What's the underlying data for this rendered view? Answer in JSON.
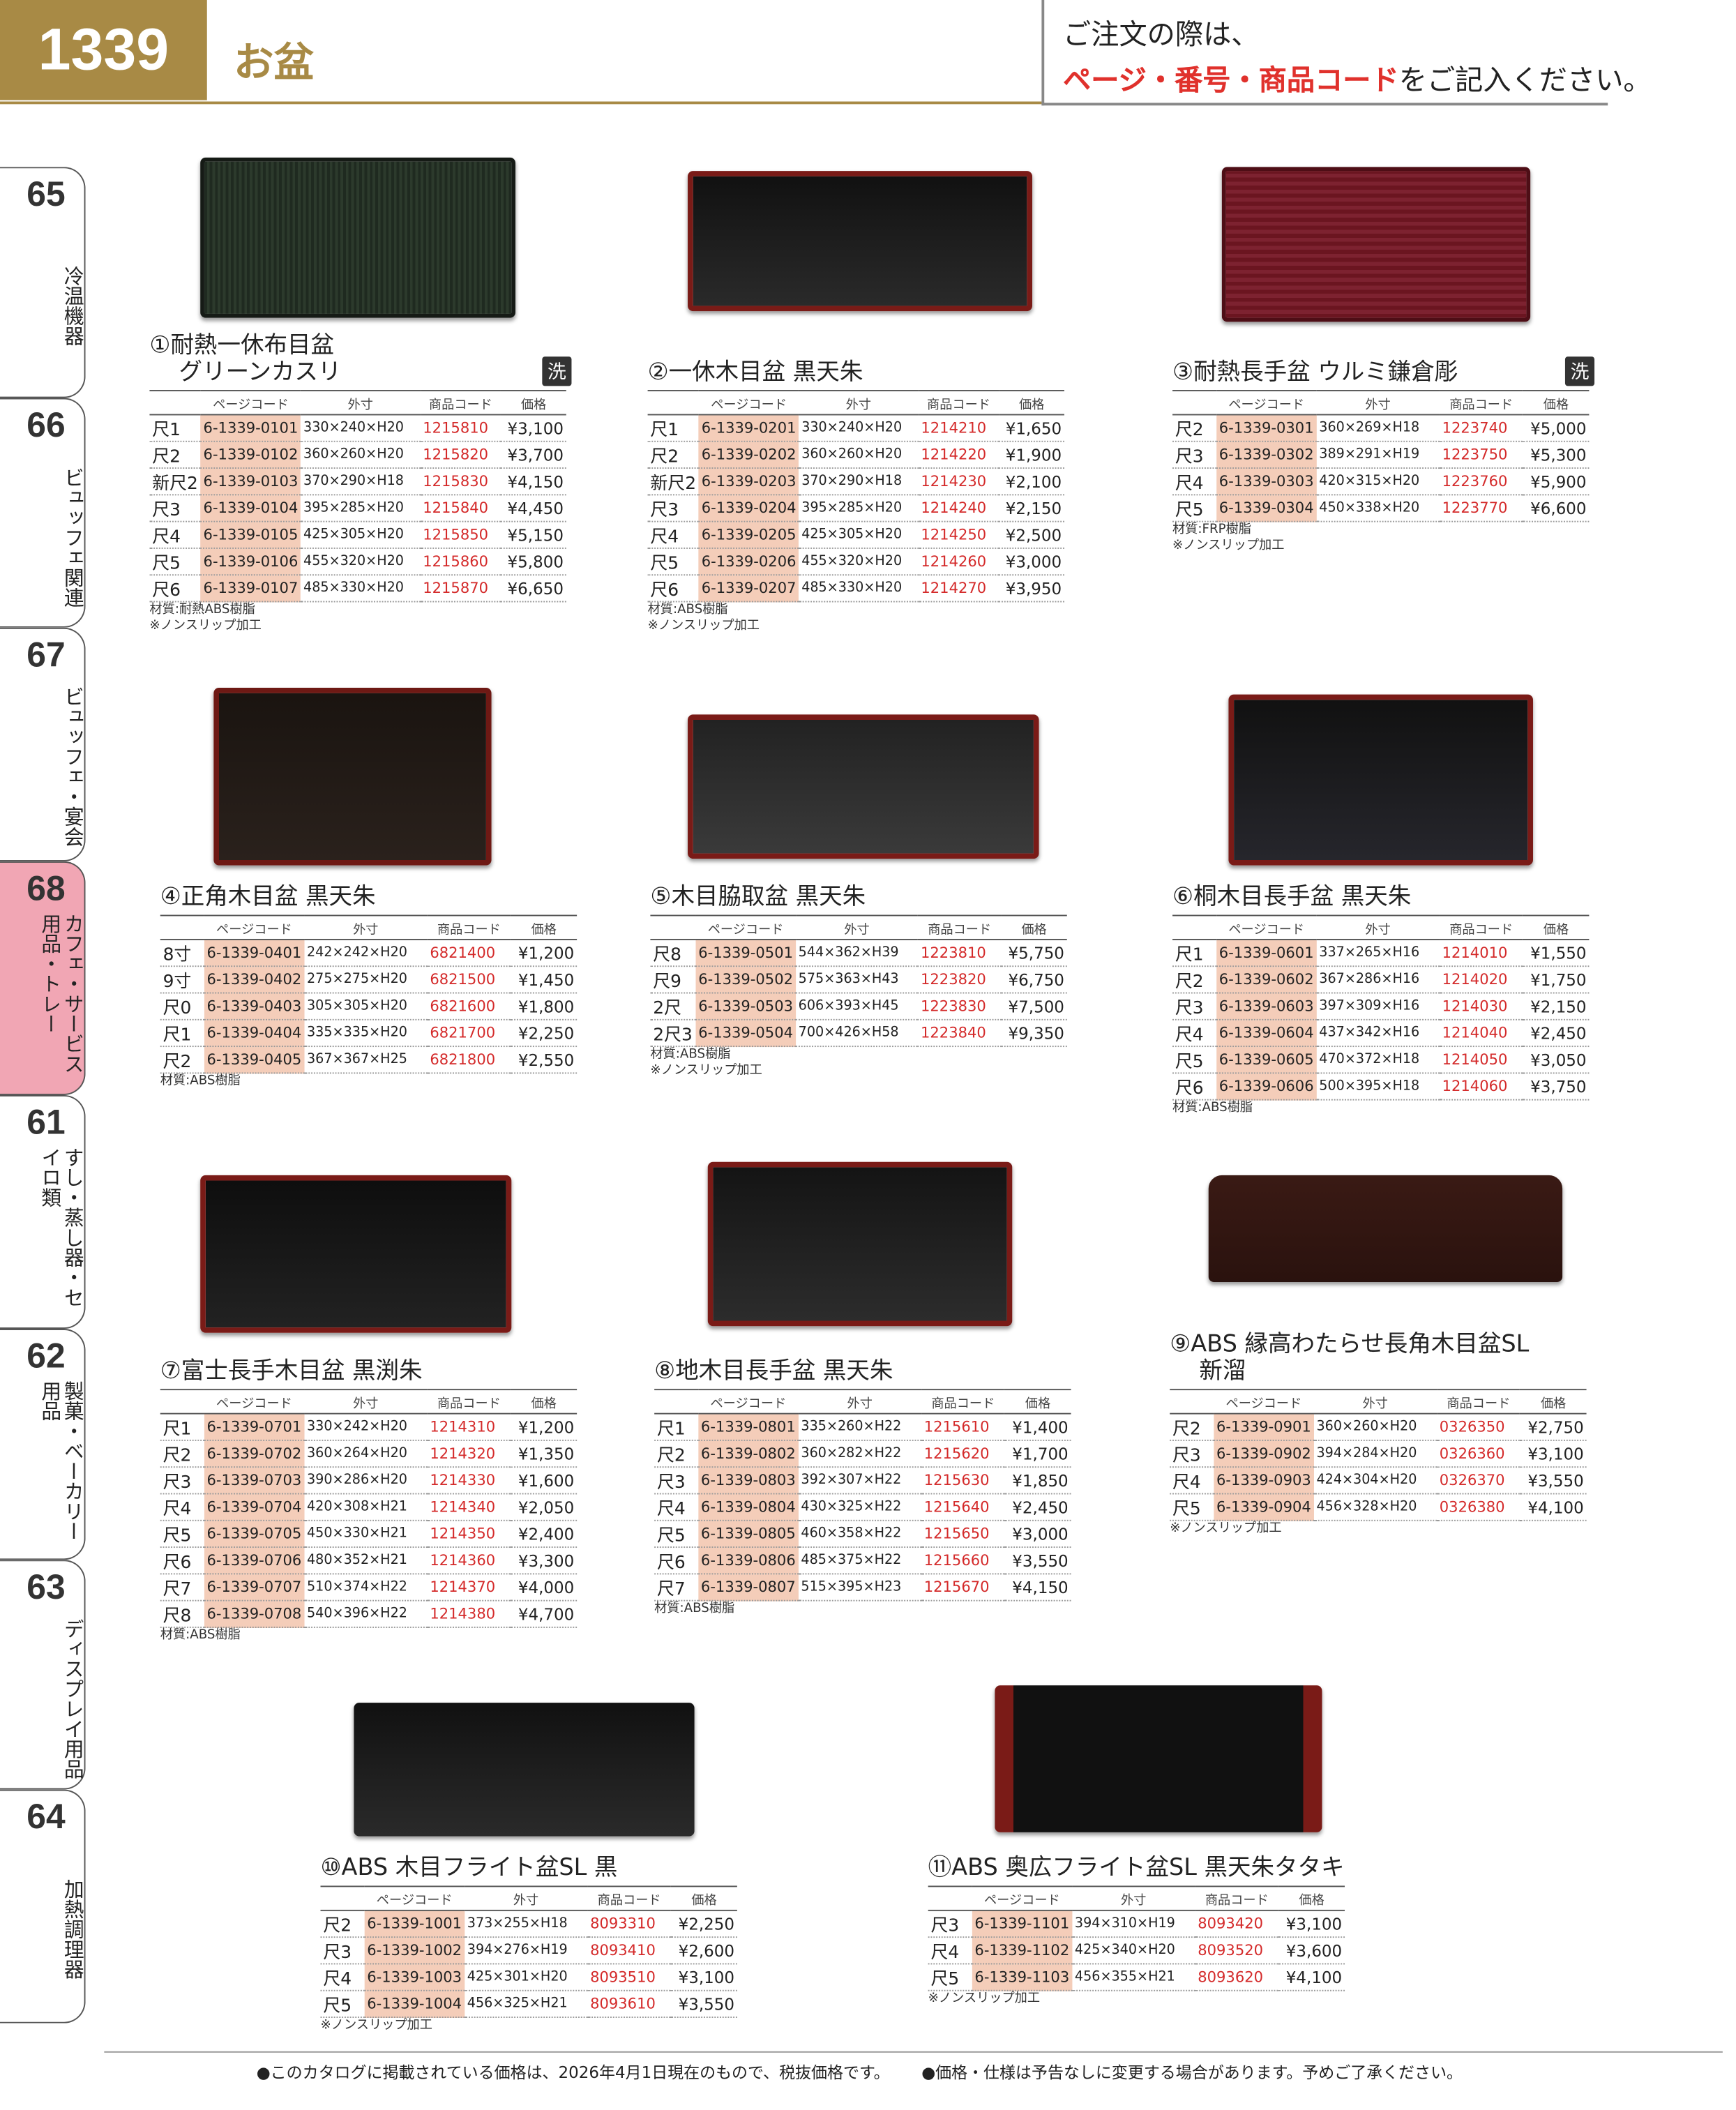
{
  "header": {
    "page": "1339",
    "title": "お盆",
    "notice_line1": "ご注文の際は、",
    "notice_highlight": "ページ・番号・商品コード",
    "notice_rest": "をご記入ください。"
  },
  "side_tabs": [
    {
      "number": "65",
      "label": "冷温機器"
    },
    {
      "number": "66",
      "label": "ビュッフェ関連"
    },
    {
      "number": "67",
      "label": "ビュッフェ・宴会"
    },
    {
      "number": "68",
      "label": "カフェ・サービス用品・トレー"
    },
    {
      "number": "61",
      "label": "すし・蒸し器・セイロ類"
    },
    {
      "number": "62",
      "label": "製菓・ベーカリー用品"
    },
    {
      "number": "63",
      "label": "ディスプレイ用品"
    },
    {
      "number": "64",
      "label": "加熱調理器"
    }
  ],
  "table_header": [
    "ページコード",
    "外寸",
    "商品コード",
    "価格"
  ],
  "products": [
    {
      "title": "①耐熱一休布目盆",
      "subtitle": "グリーンカスリ",
      "badge": "洗",
      "rows": [
        [
          "尺1",
          "6-1339-0101",
          "330×240×H20",
          "1215810",
          "¥3,100"
        ],
        [
          "尺2",
          "6-1339-0102",
          "360×260×H20",
          "1215820",
          "¥3,700"
        ],
        [
          "新尺2",
          "6-1339-0103",
          "370×290×H18",
          "1215830",
          "¥4,150"
        ],
        [
          "尺3",
          "6-1339-0104",
          "395×285×H20",
          "1215840",
          "¥4,450"
        ],
        [
          "尺4",
          "6-1339-0105",
          "425×305×H20",
          "1215850",
          "¥5,150"
        ],
        [
          "尺5",
          "6-1339-0106",
          "455×320×H20",
          "1215860",
          "¥5,800"
        ],
        [
          "尺6",
          "6-1339-0107",
          "485×330×H20",
          "1215870",
          "¥6,650"
        ]
      ],
      "notes": [
        "材質:耐熱ABS樹脂",
        "※ノンスリップ加工"
      ]
    },
    {
      "title": "②一休木目盆 黒天朱",
      "rows": [
        [
          "尺1",
          "6-1339-0201",
          "330×240×H20",
          "1214210",
          "¥1,650"
        ],
        [
          "尺2",
          "6-1339-0202",
          "360×260×H20",
          "1214220",
          "¥1,900"
        ],
        [
          "新尺2",
          "6-1339-0203",
          "370×290×H18",
          "1214230",
          "¥2,100"
        ],
        [
          "尺3",
          "6-1339-0204",
          "395×285×H20",
          "1214240",
          "¥2,150"
        ],
        [
          "尺4",
          "6-1339-0205",
          "425×305×H20",
          "1214250",
          "¥2,500"
        ],
        [
          "尺5",
          "6-1339-0206",
          "455×320×H20",
          "1214260",
          "¥3,000"
        ],
        [
          "尺6",
          "6-1339-0207",
          "485×330×H20",
          "1214270",
          "¥3,950"
        ]
      ],
      "notes": [
        "材質:ABS樹脂",
        "※ノンスリップ加工"
      ]
    },
    {
      "title": "③耐熱長手盆 ウルミ鎌倉彫",
      "badge": "洗",
      "rows": [
        [
          "尺2",
          "6-1339-0301",
          "360×269×H18",
          "1223740",
          "¥5,000"
        ],
        [
          "尺3",
          "6-1339-0302",
          "389×291×H19",
          "1223750",
          "¥5,300"
        ],
        [
          "尺4",
          "6-1339-0303",
          "420×315×H20",
          "1223760",
          "¥5,900"
        ],
        [
          "尺5",
          "6-1339-0304",
          "450×338×H20",
          "1223770",
          "¥6,600"
        ]
      ],
      "notes": [
        "材質:FRP樹脂",
        "※ノンスリップ加工"
      ]
    },
    {
      "title": "④正角木目盆 黒天朱",
      "rows": [
        [
          "8寸",
          "6-1339-0401",
          "242×242×H20",
          "6821400",
          "¥1,200"
        ],
        [
          "9寸",
          "6-1339-0402",
          "275×275×H20",
          "6821500",
          "¥1,450"
        ],
        [
          "尺0",
          "6-1339-0403",
          "305×305×H20",
          "6821600",
          "¥1,800"
        ],
        [
          "尺1",
          "6-1339-0404",
          "335×335×H20",
          "6821700",
          "¥2,250"
        ],
        [
          "尺2",
          "6-1339-0405",
          "367×367×H25",
          "6821800",
          "¥2,550"
        ]
      ],
      "notes": [
        "材質:ABS樹脂"
      ]
    },
    {
      "title": "⑤木目脇取盆 黒天朱",
      "rows": [
        [
          "尺8",
          "6-1339-0501",
          "544×362×H39",
          "1223810",
          "¥5,750"
        ],
        [
          "尺9",
          "6-1339-0502",
          "575×363×H43",
          "1223820",
          "¥6,750"
        ],
        [
          "2尺",
          "6-1339-0503",
          "606×393×H45",
          "1223830",
          "¥7,500"
        ],
        [
          "2尺3",
          "6-1339-0504",
          "700×426×H58",
          "1223840",
          "¥9,350"
        ]
      ],
      "notes": [
        "材質:ABS樹脂",
        "※ノンスリップ加工"
      ]
    },
    {
      "title": "⑥桐木目長手盆 黒天朱",
      "rows": [
        [
          "尺1",
          "6-1339-0601",
          "337×265×H16",
          "1214010",
          "¥1,550"
        ],
        [
          "尺2",
          "6-1339-0602",
          "367×286×H16",
          "1214020",
          "¥1,750"
        ],
        [
          "尺3",
          "6-1339-0603",
          "397×309×H16",
          "1214030",
          "¥2,150"
        ],
        [
          "尺4",
          "6-1339-0604",
          "437×342×H16",
          "1214040",
          "¥2,450"
        ],
        [
          "尺5",
          "6-1339-0605",
          "470×372×H18",
          "1214050",
          "¥3,050"
        ],
        [
          "尺6",
          "6-1339-0606",
          "500×395×H18",
          "1214060",
          "¥3,750"
        ]
      ],
      "notes": [
        "材質:ABS樹脂"
      ]
    },
    {
      "title": "⑦富士長手木目盆 黒渕朱",
      "rows": [
        [
          "尺1",
          "6-1339-0701",
          "330×242×H20",
          "1214310",
          "¥1,200"
        ],
        [
          "尺2",
          "6-1339-0702",
          "360×264×H20",
          "1214320",
          "¥1,350"
        ],
        [
          "尺3",
          "6-1339-0703",
          "390×286×H20",
          "1214330",
          "¥1,600"
        ],
        [
          "尺4",
          "6-1339-0704",
          "420×308×H21",
          "1214340",
          "¥2,050"
        ],
        [
          "尺5",
          "6-1339-0705",
          "450×330×H21",
          "1214350",
          "¥2,400"
        ],
        [
          "尺6",
          "6-1339-0706",
          "480×352×H21",
          "1214360",
          "¥3,300"
        ],
        [
          "尺7",
          "6-1339-0707",
          "510×374×H22",
          "1214370",
          "¥4,000"
        ],
        [
          "尺8",
          "6-1339-0708",
          "540×396×H22",
          "1214380",
          "¥4,700"
        ]
      ],
      "notes": [
        "材質:ABS樹脂"
      ]
    },
    {
      "title": "⑧地木目長手盆 黒天朱",
      "rows": [
        [
          "尺1",
          "6-1339-0801",
          "335×260×H22",
          "1215610",
          "¥1,400"
        ],
        [
          "尺2",
          "6-1339-0802",
          "360×282×H22",
          "1215620",
          "¥1,700"
        ],
        [
          "尺3",
          "6-1339-0803",
          "392×307×H22",
          "1215630",
          "¥1,850"
        ],
        [
          "尺4",
          "6-1339-0804",
          "430×325×H22",
          "1215640",
          "¥2,450"
        ],
        [
          "尺5",
          "6-1339-0805",
          "460×358×H22",
          "1215650",
          "¥3,000"
        ],
        [
          "尺6",
          "6-1339-0806",
          "485×375×H22",
          "1215660",
          "¥3,550"
        ],
        [
          "尺7",
          "6-1339-0807",
          "515×395×H23",
          "1215670",
          "¥4,150"
        ]
      ],
      "notes": [
        "材質:ABS樹脂"
      ]
    },
    {
      "title": "⑨ABS 縁高わたらせ長角木目盆SL",
      "subtitle": "新溜",
      "rows": [
        [
          "尺2",
          "6-1339-0901",
          "360×260×H20",
          "0326350",
          "¥2,750"
        ],
        [
          "尺3",
          "6-1339-0902",
          "394×284×H20",
          "0326360",
          "¥3,100"
        ],
        [
          "尺4",
          "6-1339-0903",
          "424×304×H20",
          "0326370",
          "¥3,550"
        ],
        [
          "尺5",
          "6-1339-0904",
          "456×328×H20",
          "0326380",
          "¥4,100"
        ]
      ],
      "notes": [
        "※ノンスリップ加工"
      ]
    },
    {
      "title": "⑩ABS 木目フライト盆SL 黒",
      "rows": [
        [
          "尺2",
          "6-1339-1001",
          "373×255×H18",
          "8093310",
          "¥2,250"
        ],
        [
          "尺3",
          "6-1339-1002",
          "394×276×H19",
          "8093410",
          "¥2,600"
        ],
        [
          "尺4",
          "6-1339-1003",
          "425×301×H20",
          "8093510",
          "¥3,100"
        ],
        [
          "尺5",
          "6-1339-1004",
          "456×325×H21",
          "8093610",
          "¥3,550"
        ]
      ],
      "notes": [
        "※ノンスリップ加工"
      ]
    },
    {
      "title": "⑪ABS 奥広フライト盆SL 黒天朱タタキ",
      "rows": [
        [
          "尺3",
          "6-1339-1101",
          "394×310×H19",
          "8093420",
          "¥3,100"
        ],
        [
          "尺4",
          "6-1339-1102",
          "425×340×H20",
          "8093520",
          "¥3,600"
        ],
        [
          "尺5",
          "6-1339-1103",
          "456×355×H21",
          "8093620",
          "¥4,100"
        ]
      ],
      "notes": [
        "※ノンスリップ加工"
      ]
    }
  ],
  "footer": [
    "●このカタログに掲載されている価格は、2026年4月1日現在のもので、税抜価格です。",
    "●価格・仕様は予告なしに変更する場合があります。予めご了承ください。"
  ]
}
